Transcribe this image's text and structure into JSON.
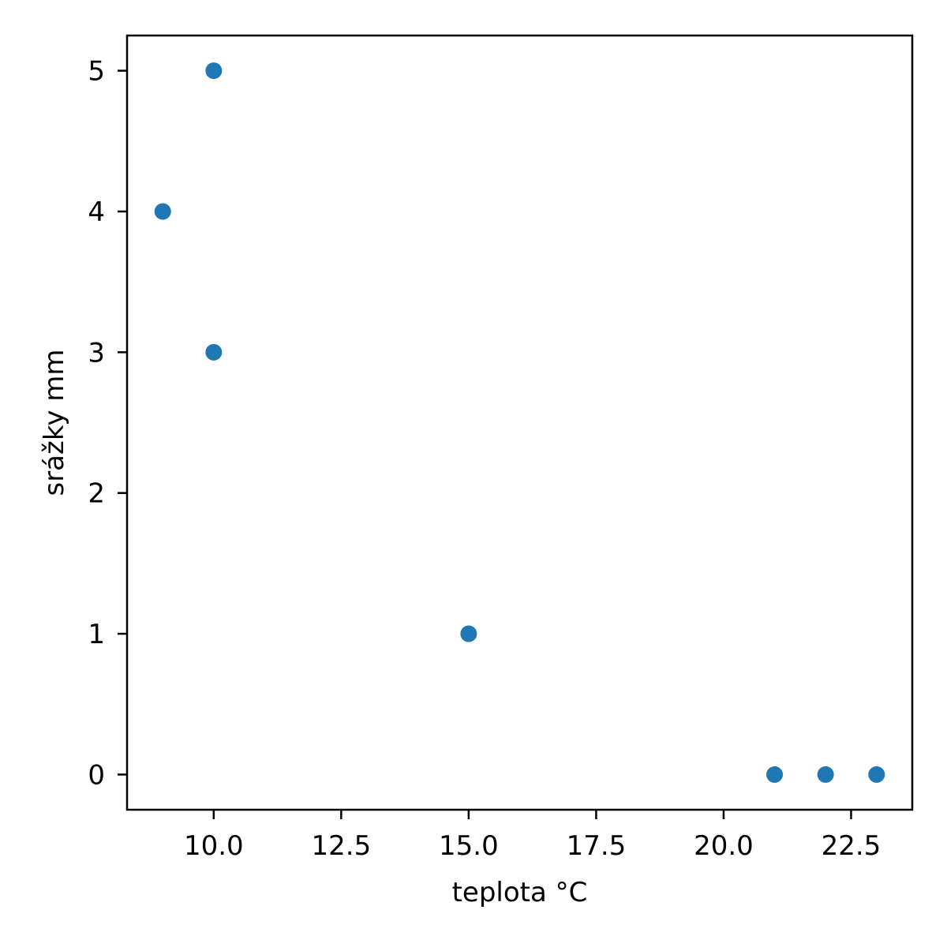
{
  "chart_data": {
    "type": "scatter",
    "title": "",
    "xlabel": "teplota °C",
    "ylabel": "srážky mm",
    "xlim": [
      8.3,
      23.7
    ],
    "ylim": [
      -0.25,
      5.25
    ],
    "x_ticks": [
      10.0,
      12.5,
      15.0,
      17.5,
      20.0,
      22.5
    ],
    "x_tick_labels": [
      "10.0",
      "12.5",
      "15.0",
      "17.5",
      "20.0",
      "22.5"
    ],
    "y_ticks": [
      0,
      1,
      2,
      3,
      4,
      5
    ],
    "y_tick_labels": [
      "0",
      "1",
      "2",
      "3",
      "4",
      "5"
    ],
    "grid": false,
    "series": [
      {
        "color": "#1f77b4",
        "points": [
          {
            "x": 9,
            "y": 4
          },
          {
            "x": 10,
            "y": 5
          },
          {
            "x": 10,
            "y": 3
          },
          {
            "x": 15,
            "y": 1
          },
          {
            "x": 21,
            "y": 0
          },
          {
            "x": 22,
            "y": 0
          },
          {
            "x": 23,
            "y": 0
          }
        ]
      }
    ]
  }
}
